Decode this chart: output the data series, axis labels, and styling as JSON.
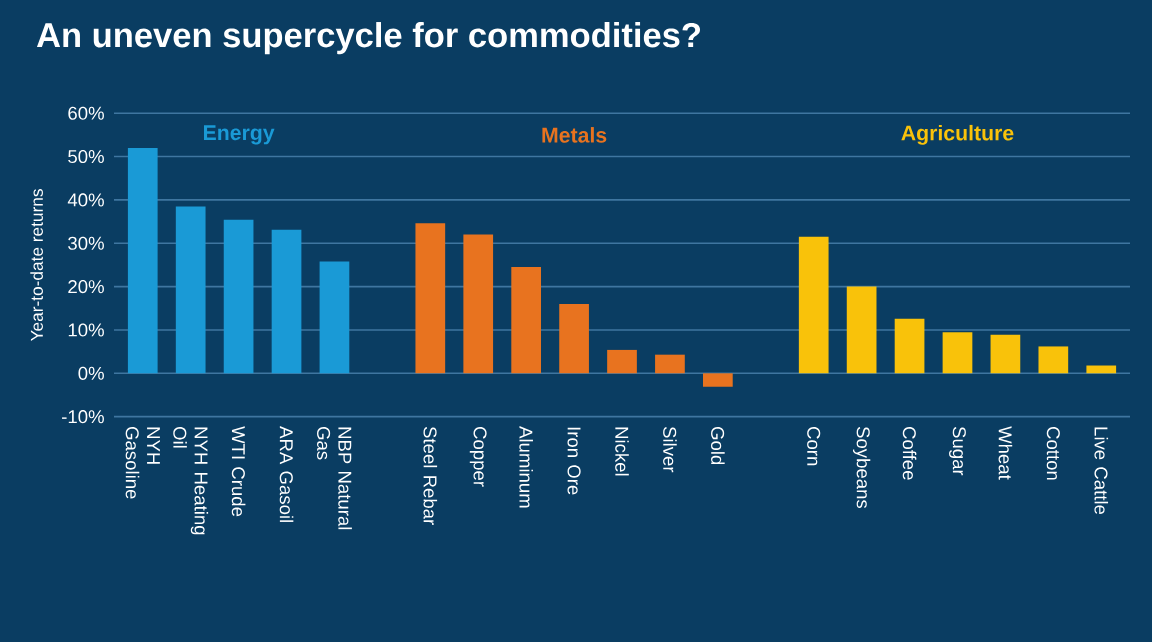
{
  "chart_data": {
    "type": "bar",
    "title": "An uneven supercycle for commodities?",
    "ylabel": "Year-to-date returns",
    "categories": [
      "NYH Gasoline",
      "NYH Heating Oil",
      "WTI Crude",
      "ARA Gasoil",
      "NBP Natural Gas",
      null,
      "Steel Rebar",
      "Copper",
      "Aluminum",
      "Iron Ore",
      "Nickel",
      "Silver",
      "Gold",
      null,
      "Corn",
      "Soybeans",
      "Coffee",
      "Sugar",
      "Wheat",
      "Cotton",
      "Live Cattle"
    ],
    "series": [
      {
        "name": "Energy",
        "color": "#1a9ad6",
        "values": [
          52.0,
          38.5,
          35.4,
          33.1,
          25.8,
          null,
          null,
          null,
          null,
          null,
          null,
          null,
          null,
          null,
          null,
          null,
          null,
          null,
          null,
          null,
          null
        ]
      },
      {
        "name": "Metals",
        "color": "#e8731f",
        "values": [
          null,
          null,
          null,
          null,
          null,
          null,
          34.6,
          32.0,
          24.5,
          16.0,
          5.4,
          4.3,
          -3.1,
          null,
          null,
          null,
          null,
          null,
          null,
          null,
          null
        ]
      },
      {
        "name": "Agriculture",
        "color": "#f9c20a",
        "values": [
          null,
          null,
          null,
          null,
          null,
          null,
          null,
          null,
          null,
          null,
          null,
          null,
          null,
          null,
          31.5,
          20.0,
          12.6,
          9.5,
          8.9,
          6.2,
          1.8
        ]
      }
    ],
    "ylim": [
      -10,
      60
    ],
    "yticks": [
      {
        "value": -10,
        "label": "-10%"
      },
      {
        "value": 0,
        "label": "0%"
      },
      {
        "value": 10,
        "label": "10%"
      },
      {
        "value": 20,
        "label": "20%"
      },
      {
        "value": 30,
        "label": "30%"
      },
      {
        "value": 40,
        "label": "40%"
      },
      {
        "value": 50,
        "label": "50%"
      },
      {
        "value": 60,
        "label": "60%"
      }
    ],
    "grid": "y",
    "legend": false
  }
}
